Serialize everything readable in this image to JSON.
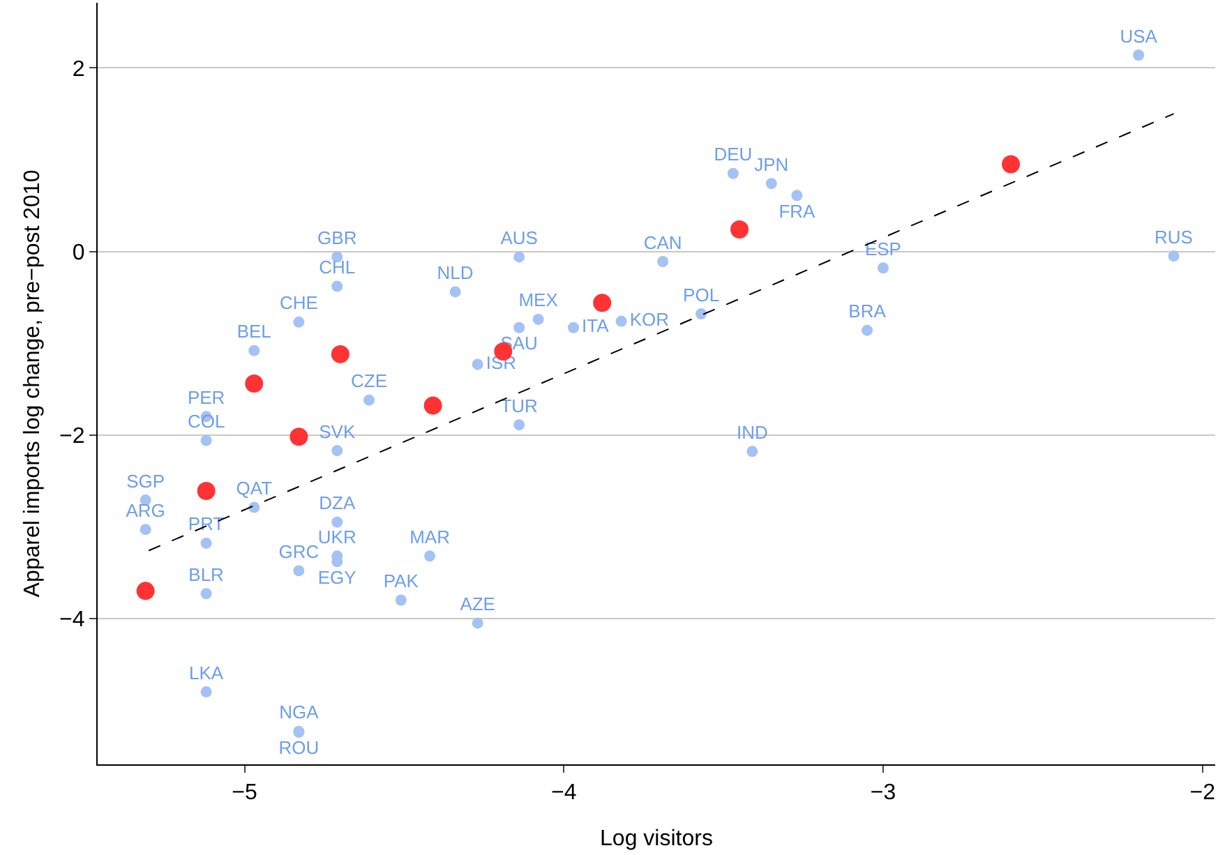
{
  "chart_data": {
    "type": "scatter",
    "xlabel": "Log visitors",
    "ylabel": "Apparel imports log change, pre−post 2010",
    "xlim": [
      -5.46,
      -1.96
    ],
    "ylim": [
      -5.59,
      2.71
    ],
    "xticks": [
      {
        "value": -5,
        "label": "−5"
      },
      {
        "value": -4,
        "label": "−4"
      },
      {
        "value": -3,
        "label": "−3"
      },
      {
        "value": -2,
        "label": "−2"
      }
    ],
    "yticks": [
      {
        "value": -4,
        "label": "−4"
      },
      {
        "value": -2,
        "label": "−2"
      },
      0,
      2
    ],
    "grid": "y",
    "marker": "circle",
    "series": [
      {
        "color": "#a4c2f4",
        "x": [
          -2.2,
          -3.47,
          -3.35,
          -3.27,
          -3.69,
          -2.09,
          -3.0,
          -4.14,
          -4.71,
          -4.71,
          -4.34,
          -4.83,
          -4.97,
          -4.08,
          -4.14,
          -3.97,
          -3.82,
          -3.57,
          -3.05,
          -4.27,
          -4.61,
          -5.12,
          -5.12,
          -4.71,
          -4.14,
          -3.41,
          -5.31,
          -5.31,
          -4.97,
          -5.12,
          -4.71,
          -4.71,
          -4.71,
          -4.83,
          -4.42,
          -5.12,
          -4.51,
          -4.27,
          -5.12,
          -4.83,
          -4.83
        ],
        "values": [
          2.14,
          0.85,
          0.74,
          0.61,
          -0.11,
          -0.05,
          -0.18,
          -0.06,
          -0.06,
          -0.38,
          -0.44,
          -0.77,
          -1.08,
          -0.74,
          -0.83,
          -0.83,
          -0.76,
          -0.68,
          -0.86,
          -1.23,
          -1.62,
          -1.8,
          -2.06,
          -2.17,
          -1.89,
          -2.18,
          -2.71,
          -3.03,
          -2.79,
          -3.18,
          -2.95,
          -3.32,
          -3.38,
          -3.48,
          -3.32,
          -3.73,
          -3.8,
          -4.05,
          -4.8,
          -5.23,
          -5.24
        ],
        "value_labels": [
          "USA",
          "DEU",
          "JPN",
          "FRA",
          "CAN",
          "RUS",
          "ESP",
          "AUS",
          "GBR",
          "CHL",
          "NLD",
          "CHE",
          "BEL",
          "MEX",
          "SAU",
          "ITA",
          "KOR",
          "POL",
          "BRA",
          "ISR",
          "CZE",
          "PER",
          "COL",
          "SVK",
          "TUR",
          "IND",
          "SGP",
          "ARG",
          "QAT",
          "PRT",
          "DZA",
          "UKR",
          "EGY",
          "GRC",
          "MAR",
          "BLR",
          "PAK",
          "AZE",
          "LKA",
          "NGA",
          "ROU"
        ]
      },
      {
        "color": "#ff3333",
        "x": [
          -5.31,
          -5.12,
          -4.97,
          -4.83,
          -4.7,
          -4.41,
          -4.19,
          -3.88,
          -3.45,
          -2.6
        ],
        "values": [
          -3.7,
          -2.61,
          -1.44,
          -2.02,
          -1.12,
          -1.68,
          -1.09,
          -0.56,
          0.24,
          0.95
        ]
      },
      {
        "type": "line",
        "color": "#000000",
        "line_style": "dashed",
        "marker": "none",
        "x": [
          -5.3,
          -2.09
        ],
        "values": [
          -3.26,
          1.5
        ]
      }
    ]
  }
}
